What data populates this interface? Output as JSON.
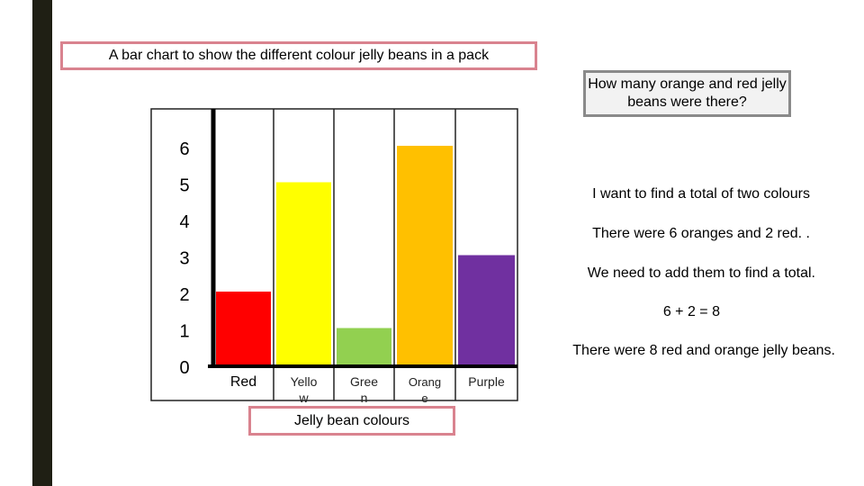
{
  "slide": {
    "title": "A bar chart to show the different colour jelly beans in a pack",
    "question": "How many orange and red jelly beans were there?",
    "notes": [
      "I want to find a total of two colours",
      "There were 6 oranges and 2 red. .",
      "We need to add them to find a total.",
      "6 + 2 = 8",
      "There were 8 red and orange jelly beans."
    ]
  },
  "colors": {
    "left_bar": "#1f1f14",
    "title_border": "#d9838f",
    "question_border": "#8a8a8a"
  },
  "chart_data": {
    "type": "bar",
    "title": "A bar chart to show the different colour jelly beans in a pack",
    "xlabel": "Jelly bean colours",
    "ylabel": "",
    "categories": [
      "Red",
      "Yello w",
      "Gree n",
      "Orang e",
      "Purple"
    ],
    "values": [
      2,
      5,
      1,
      6,
      3
    ],
    "bar_colors": [
      "#ff0000",
      "#ffff00",
      "#92d050",
      "#ffc000",
      "#7030a0"
    ],
    "ylim": [
      0,
      6
    ],
    "yticks": [
      "0",
      "1",
      "2",
      "3",
      "4",
      "5",
      "6"
    ],
    "grid": true
  }
}
